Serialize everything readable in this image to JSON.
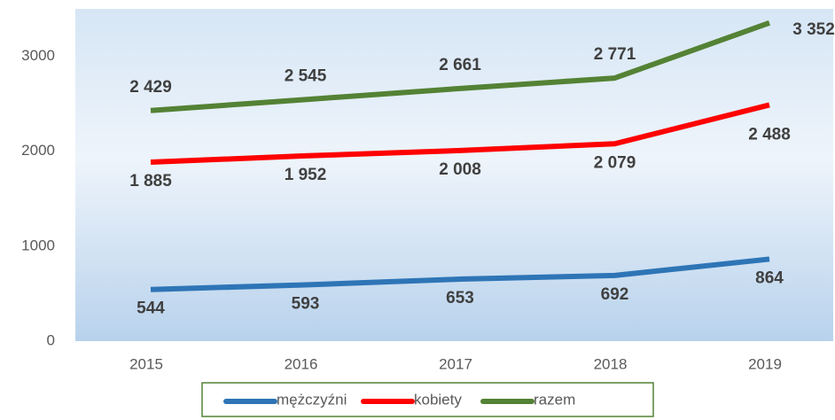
{
  "chart_data": {
    "type": "line",
    "categories": [
      "2015",
      "2016",
      "2017",
      "2018",
      "2019"
    ],
    "series": [
      {
        "name": "mężczyźni",
        "color": "#2e75b6",
        "values": [
          544,
          593,
          653,
          692,
          864
        ],
        "value_labels": [
          "544",
          "593",
          "653",
          "692",
          "864"
        ]
      },
      {
        "name": "kobiety",
        "color": "#ff0000",
        "values": [
          1885,
          1952,
          2008,
          2079,
          2488
        ],
        "value_labels": [
          "1 885",
          "1 952",
          "2 008",
          "2 079",
          "2 488"
        ]
      },
      {
        "name": "razem",
        "color": "#548235",
        "values": [
          2429,
          2545,
          2661,
          2771,
          3352
        ],
        "value_labels": [
          "2 429",
          "2 545",
          "2 661",
          "2 771",
          "3 352"
        ]
      }
    ],
    "ylim": [
      0,
      3500
    ],
    "yticks": [
      0,
      1000,
      2000,
      3000
    ],
    "grid": false,
    "legend": "bottom"
  }
}
